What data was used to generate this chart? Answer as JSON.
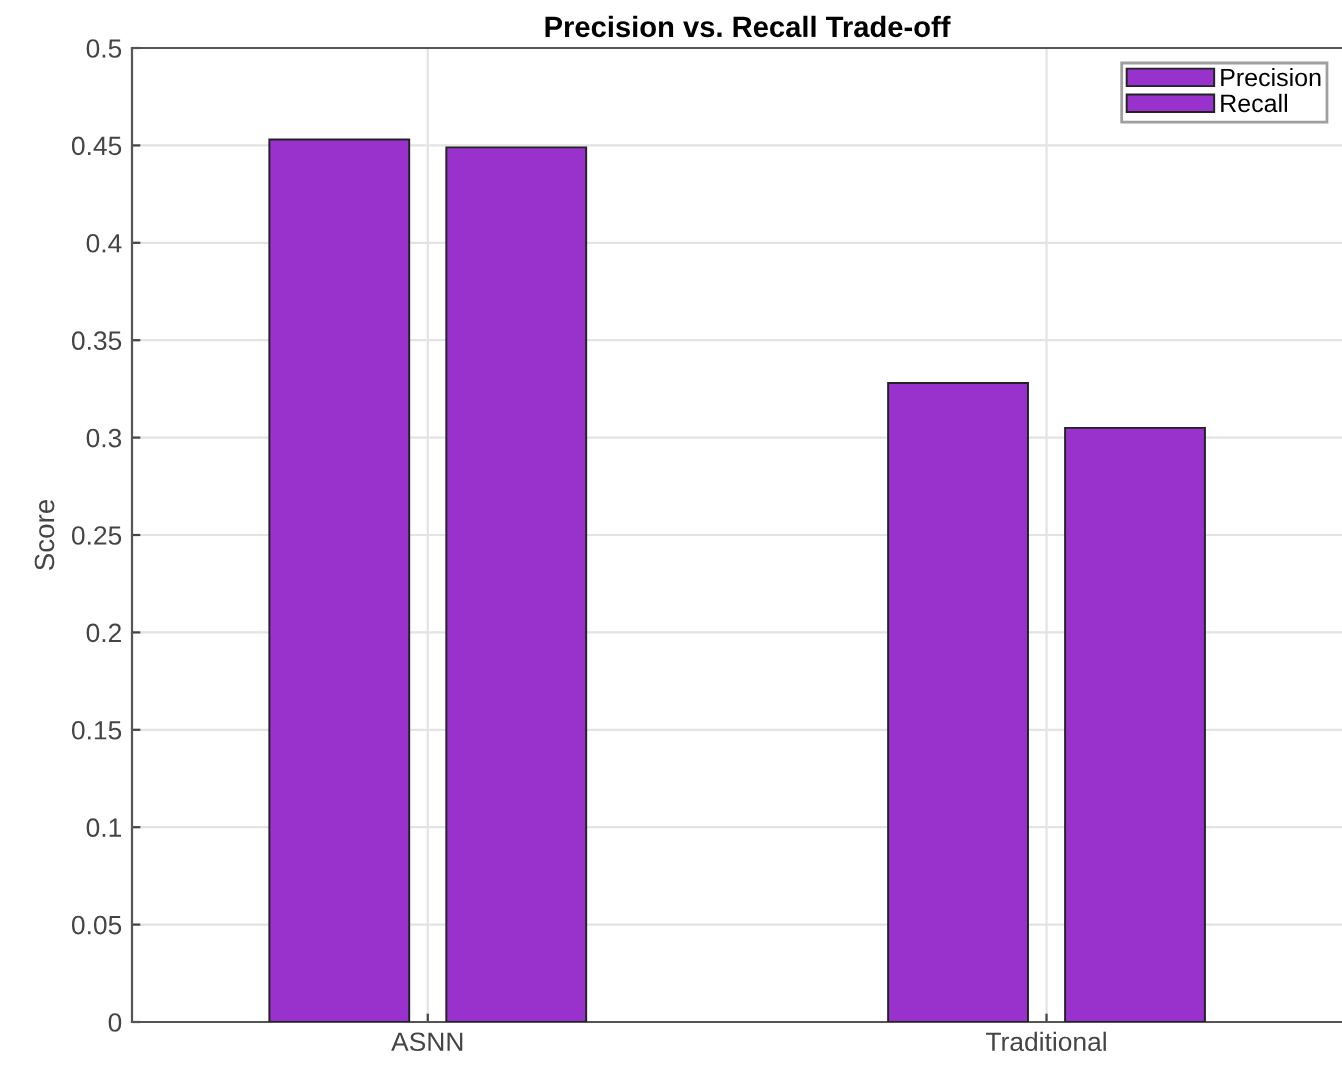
{
  "chart_data": {
    "type": "bar",
    "title": "Precision vs. Recall Trade-off",
    "ylabel": "Score",
    "categories": [
      "ASNN",
      "Traditional"
    ],
    "series": [
      {
        "name": "Precision",
        "color": "#9932cc",
        "values": [
          0.453,
          0.328
        ]
      },
      {
        "name": "Recall",
        "color": "#9932cc",
        "values": [
          0.449,
          0.305
        ]
      }
    ],
    "ylim": [
      0,
      0.5
    ],
    "yticks": [
      0,
      0.05,
      0.1,
      0.15,
      0.2,
      0.25,
      0.3,
      0.35,
      0.4,
      0.45,
      0.5
    ],
    "grid": true,
    "legend": "top right"
  }
}
